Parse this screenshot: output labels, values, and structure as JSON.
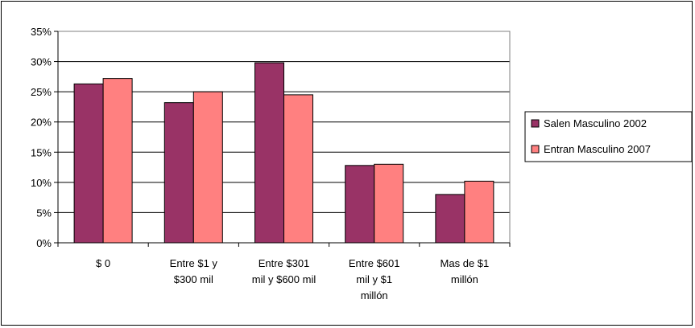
{
  "chart_data": {
    "type": "bar",
    "title": "",
    "xlabel": "",
    "ylabel": "",
    "categories": [
      [
        "$ 0"
      ],
      [
        "Entre $1 y",
        "$300 mil"
      ],
      [
        "Entre $301",
        "mil y $600 mil"
      ],
      [
        "Entre $601",
        "mil y $1",
        "millón"
      ],
      [
        "Mas de $1",
        "millón"
      ]
    ],
    "series": [
      {
        "name": "Salen Masculino 2002",
        "color": "#993366",
        "values": [
          26.3,
          23.2,
          29.8,
          12.8,
          8.0
        ]
      },
      {
        "name": "Entran Masculino 2007",
        "color": "#FF8080",
        "values": [
          27.2,
          25.0,
          24.5,
          13.0,
          10.2
        ]
      }
    ],
    "ylim": [
      0,
      35
    ],
    "yticks": [
      0,
      5,
      10,
      15,
      20,
      25,
      30,
      35
    ],
    "ytick_format": "percent",
    "grid": true,
    "legend_position": "right"
  }
}
